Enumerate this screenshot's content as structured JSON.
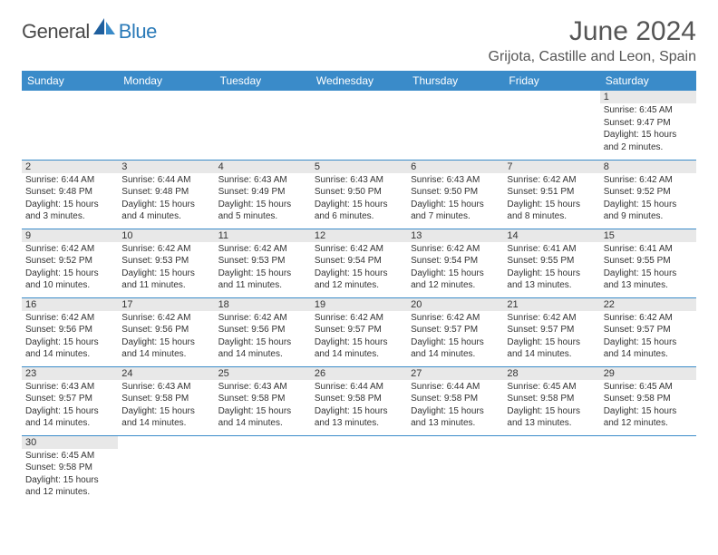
{
  "logo": {
    "text1": "General",
    "text2": "Blue"
  },
  "title": "June 2024",
  "location": "Grijota, Castille and Leon, Spain",
  "weekdays": [
    "Sunday",
    "Monday",
    "Tuesday",
    "Wednesday",
    "Thursday",
    "Friday",
    "Saturday"
  ],
  "colors": {
    "header_bg": "#3a8bc9",
    "header_text": "#ffffff",
    "daynum_bg": "#e8e8e8",
    "border": "#3a8bc9",
    "logo_gray": "#4a4a4a",
    "logo_blue": "#2a7ab8",
    "title_color": "#555555"
  },
  "weeks": [
    [
      null,
      null,
      null,
      null,
      null,
      null,
      {
        "n": "1",
        "sr": "Sunrise: 6:45 AM",
        "ss": "Sunset: 9:47 PM",
        "d1": "Daylight: 15 hours",
        "d2": "and 2 minutes."
      }
    ],
    [
      {
        "n": "2",
        "sr": "Sunrise: 6:44 AM",
        "ss": "Sunset: 9:48 PM",
        "d1": "Daylight: 15 hours",
        "d2": "and 3 minutes."
      },
      {
        "n": "3",
        "sr": "Sunrise: 6:44 AM",
        "ss": "Sunset: 9:48 PM",
        "d1": "Daylight: 15 hours",
        "d2": "and 4 minutes."
      },
      {
        "n": "4",
        "sr": "Sunrise: 6:43 AM",
        "ss": "Sunset: 9:49 PM",
        "d1": "Daylight: 15 hours",
        "d2": "and 5 minutes."
      },
      {
        "n": "5",
        "sr": "Sunrise: 6:43 AM",
        "ss": "Sunset: 9:50 PM",
        "d1": "Daylight: 15 hours",
        "d2": "and 6 minutes."
      },
      {
        "n": "6",
        "sr": "Sunrise: 6:43 AM",
        "ss": "Sunset: 9:50 PM",
        "d1": "Daylight: 15 hours",
        "d2": "and 7 minutes."
      },
      {
        "n": "7",
        "sr": "Sunrise: 6:42 AM",
        "ss": "Sunset: 9:51 PM",
        "d1": "Daylight: 15 hours",
        "d2": "and 8 minutes."
      },
      {
        "n": "8",
        "sr": "Sunrise: 6:42 AM",
        "ss": "Sunset: 9:52 PM",
        "d1": "Daylight: 15 hours",
        "d2": "and 9 minutes."
      }
    ],
    [
      {
        "n": "9",
        "sr": "Sunrise: 6:42 AM",
        "ss": "Sunset: 9:52 PM",
        "d1": "Daylight: 15 hours",
        "d2": "and 10 minutes."
      },
      {
        "n": "10",
        "sr": "Sunrise: 6:42 AM",
        "ss": "Sunset: 9:53 PM",
        "d1": "Daylight: 15 hours",
        "d2": "and 11 minutes."
      },
      {
        "n": "11",
        "sr": "Sunrise: 6:42 AM",
        "ss": "Sunset: 9:53 PM",
        "d1": "Daylight: 15 hours",
        "d2": "and 11 minutes."
      },
      {
        "n": "12",
        "sr": "Sunrise: 6:42 AM",
        "ss": "Sunset: 9:54 PM",
        "d1": "Daylight: 15 hours",
        "d2": "and 12 minutes."
      },
      {
        "n": "13",
        "sr": "Sunrise: 6:42 AM",
        "ss": "Sunset: 9:54 PM",
        "d1": "Daylight: 15 hours",
        "d2": "and 12 minutes."
      },
      {
        "n": "14",
        "sr": "Sunrise: 6:41 AM",
        "ss": "Sunset: 9:55 PM",
        "d1": "Daylight: 15 hours",
        "d2": "and 13 minutes."
      },
      {
        "n": "15",
        "sr": "Sunrise: 6:41 AM",
        "ss": "Sunset: 9:55 PM",
        "d1": "Daylight: 15 hours",
        "d2": "and 13 minutes."
      }
    ],
    [
      {
        "n": "16",
        "sr": "Sunrise: 6:42 AM",
        "ss": "Sunset: 9:56 PM",
        "d1": "Daylight: 15 hours",
        "d2": "and 14 minutes."
      },
      {
        "n": "17",
        "sr": "Sunrise: 6:42 AM",
        "ss": "Sunset: 9:56 PM",
        "d1": "Daylight: 15 hours",
        "d2": "and 14 minutes."
      },
      {
        "n": "18",
        "sr": "Sunrise: 6:42 AM",
        "ss": "Sunset: 9:56 PM",
        "d1": "Daylight: 15 hours",
        "d2": "and 14 minutes."
      },
      {
        "n": "19",
        "sr": "Sunrise: 6:42 AM",
        "ss": "Sunset: 9:57 PM",
        "d1": "Daylight: 15 hours",
        "d2": "and 14 minutes."
      },
      {
        "n": "20",
        "sr": "Sunrise: 6:42 AM",
        "ss": "Sunset: 9:57 PM",
        "d1": "Daylight: 15 hours",
        "d2": "and 14 minutes."
      },
      {
        "n": "21",
        "sr": "Sunrise: 6:42 AM",
        "ss": "Sunset: 9:57 PM",
        "d1": "Daylight: 15 hours",
        "d2": "and 14 minutes."
      },
      {
        "n": "22",
        "sr": "Sunrise: 6:42 AM",
        "ss": "Sunset: 9:57 PM",
        "d1": "Daylight: 15 hours",
        "d2": "and 14 minutes."
      }
    ],
    [
      {
        "n": "23",
        "sr": "Sunrise: 6:43 AM",
        "ss": "Sunset: 9:57 PM",
        "d1": "Daylight: 15 hours",
        "d2": "and 14 minutes."
      },
      {
        "n": "24",
        "sr": "Sunrise: 6:43 AM",
        "ss": "Sunset: 9:58 PM",
        "d1": "Daylight: 15 hours",
        "d2": "and 14 minutes."
      },
      {
        "n": "25",
        "sr": "Sunrise: 6:43 AM",
        "ss": "Sunset: 9:58 PM",
        "d1": "Daylight: 15 hours",
        "d2": "and 14 minutes."
      },
      {
        "n": "26",
        "sr": "Sunrise: 6:44 AM",
        "ss": "Sunset: 9:58 PM",
        "d1": "Daylight: 15 hours",
        "d2": "and 13 minutes."
      },
      {
        "n": "27",
        "sr": "Sunrise: 6:44 AM",
        "ss": "Sunset: 9:58 PM",
        "d1": "Daylight: 15 hours",
        "d2": "and 13 minutes."
      },
      {
        "n": "28",
        "sr": "Sunrise: 6:45 AM",
        "ss": "Sunset: 9:58 PM",
        "d1": "Daylight: 15 hours",
        "d2": "and 13 minutes."
      },
      {
        "n": "29",
        "sr": "Sunrise: 6:45 AM",
        "ss": "Sunset: 9:58 PM",
        "d1": "Daylight: 15 hours",
        "d2": "and 12 minutes."
      }
    ],
    [
      {
        "n": "30",
        "sr": "Sunrise: 6:45 AM",
        "ss": "Sunset: 9:58 PM",
        "d1": "Daylight: 15 hours",
        "d2": "and 12 minutes."
      },
      null,
      null,
      null,
      null,
      null,
      null
    ]
  ]
}
